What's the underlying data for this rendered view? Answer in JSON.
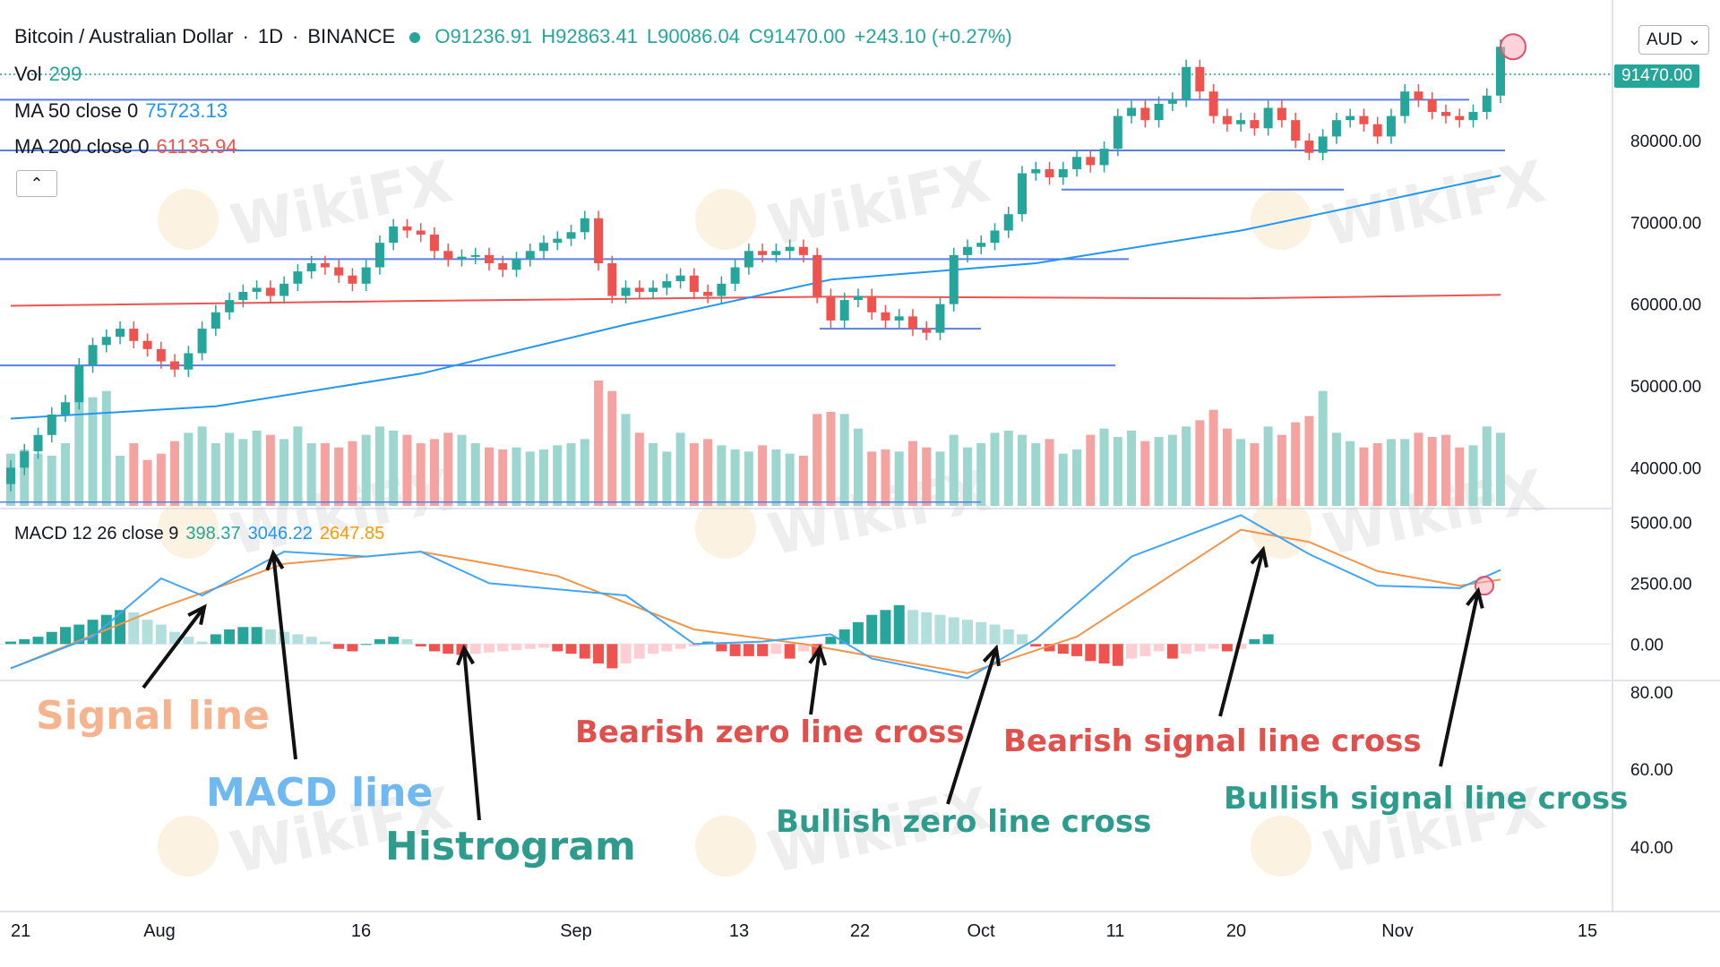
{
  "header": {
    "symbol": "Bitcoin / Australian Dollar",
    "interval": "1D",
    "exchange": "BINANCE",
    "ohlc": {
      "o": "O91236.91",
      "h": "H92863.41",
      "l": "L90086.04",
      "c": "C91470.00",
      "chg": "+243.10 (+0.27%)"
    }
  },
  "legend": {
    "vol_label": "Vol",
    "vol_value": "299",
    "ma50_label": "MA 50 close 0",
    "ma50_value": "75723.13",
    "ma200_label": "MA 200 close 0",
    "ma200_value": "61135.94",
    "macd_label": "MACD 12 26 close 9",
    "macd_hist": "398.37",
    "macd_line": "3046.22",
    "macd_signal": "2647.85"
  },
  "currency_button": "AUD",
  "collapse_icon": "chevron-up-icon",
  "last_price": "91470.00",
  "price_axis": [
    "80000.00",
    "70000.00",
    "60000.00",
    "50000.00",
    "40000.00"
  ],
  "macd_axis": [
    "5000.00",
    "2500.00",
    "0.00"
  ],
  "osc_axis": [
    "80.00",
    "60.00",
    "40.00"
  ],
  "time_axis": [
    "21",
    "Aug",
    "16",
    "Sep",
    "13",
    "22",
    "Oct",
    "11",
    "20",
    "Nov",
    "15"
  ],
  "watermark": "WikiFX",
  "annotations": {
    "signal_line": "Signal line",
    "macd_line": "MACD line",
    "histogram": "Histrogram",
    "bearish_zero": "Bearish zero line cross",
    "bullish_zero": "Bullish zero line cross",
    "bearish_signal": "Bearish signal line cross",
    "bullish_signal": "Bullish signal line cross"
  },
  "colors": {
    "up": "#26a69a",
    "down": "#ef5350",
    "macd": "#42a5f5",
    "signal": "#f2954a",
    "level": "#5b7fe0",
    "ann_signal": "#f6b48e",
    "ann_macd": "#6fb8f0",
    "ann_hist": "#2e9c8c",
    "ann_bear": "#e0504d",
    "ann_bull": "#2e9c8c"
  },
  "chart_data": {
    "type": "candlestick",
    "price_ylim": [
      35000,
      95000
    ],
    "x_start": "2021-07-21",
    "x_end": "2021-11-15",
    "horizontal_levels": [
      85000,
      78800,
      65500,
      52500
    ],
    "candles_close": [
      40000,
      42000,
      44000,
      46500,
      48000,
      52500,
      55000,
      56000,
      57000,
      55500,
      54500,
      53000,
      52000,
      54000,
      57000,
      59000,
      60500,
      61500,
      62000,
      61000,
      62500,
      64000,
      65000,
      64500,
      63500,
      62500,
      64500,
      67500,
      69500,
      69000,
      68500,
      66500,
      65500,
      65800,
      66000,
      65000,
      64200,
      65500,
      66500,
      67500,
      68000,
      68800,
      70500,
      65000,
      61000,
      62000,
      61500,
      62000,
      62800,
      63500,
      61500,
      61000,
      62500,
      64500,
      66500,
      66000,
      66500,
      67000,
      66000,
      61000,
      58000,
      60500,
      61000,
      59000,
      58000,
      58500,
      57000,
      56500,
      60000,
      66000,
      67000,
      67500,
      69000,
      71000,
      76000,
      76500,
      75500,
      76500,
      78000,
      77000,
      79000,
      83000,
      84000,
      82500,
      84500,
      85000,
      89000,
      86000,
      83000,
      82000,
      82500,
      81500,
      84000,
      82500,
      80000,
      78500,
      80500,
      82500,
      83000,
      82000,
      80500,
      83000,
      86000,
      85000,
      83500,
      83000,
      82500,
      83500,
      85500,
      91470
    ],
    "ma50": [
      {
        "x": 0,
        "y": 46000
      },
      {
        "x": 15,
        "y": 47500
      },
      {
        "x": 30,
        "y": 51500
      },
      {
        "x": 45,
        "y": 57500
      },
      {
        "x": 60,
        "y": 63000
      },
      {
        "x": 75,
        "y": 65000
      },
      {
        "x": 90,
        "y": 69000
      },
      {
        "x": 100,
        "y": 72500
      },
      {
        "x": 109,
        "y": 75723
      }
    ],
    "ma200": [
      {
        "x": 0,
        "y": 59800
      },
      {
        "x": 30,
        "y": 60400
      },
      {
        "x": 60,
        "y": 60900
      },
      {
        "x": 90,
        "y": 60700
      },
      {
        "x": 109,
        "y": 61136
      }
    ],
    "volume": [
      25,
      27,
      25,
      24,
      30,
      55,
      52,
      55,
      24,
      30,
      22,
      25,
      31,
      35,
      38,
      30,
      35,
      32,
      36,
      34,
      32,
      38,
      30,
      30,
      28,
      31,
      34,
      38,
      36,
      34,
      30,
      32,
      35,
      34,
      30,
      28,
      27,
      28,
      26,
      27,
      29,
      30,
      32,
      60,
      55,
      44,
      35,
      30,
      26,
      35,
      30,
      32,
      29,
      27,
      26,
      29,
      27,
      25,
      24,
      44,
      45,
      44,
      37,
      26,
      27,
      26,
      31,
      28,
      26,
      34,
      28,
      30,
      35,
      36,
      34,
      30,
      32,
      25,
      27,
      34,
      37,
      33,
      36,
      31,
      33,
      34,
      38,
      41,
      46,
      37,
      32,
      30,
      38,
      34,
      40,
      43,
      55,
      35,
      31,
      28,
      30,
      32,
      32,
      35,
      33,
      34,
      28,
      29,
      38,
      35
    ],
    "macd_ylim": [
      -1500,
      5500
    ],
    "macd": [
      {
        "x": 0,
        "y": -1000
      },
      {
        "x": 6,
        "y": 300
      },
      {
        "x": 11,
        "y": 2700
      },
      {
        "x": 14,
        "y": 2000
      },
      {
        "x": 20,
        "y": 3800
      },
      {
        "x": 26,
        "y": 3600
      },
      {
        "x": 30,
        "y": 3800
      },
      {
        "x": 35,
        "y": 2500
      },
      {
        "x": 45,
        "y": 2000
      },
      {
        "x": 50,
        "y": 0
      },
      {
        "x": 55,
        "y": 100
      },
      {
        "x": 60,
        "y": 400
      },
      {
        "x": 63,
        "y": -600
      },
      {
        "x": 70,
        "y": -1400
      },
      {
        "x": 75,
        "y": 200
      },
      {
        "x": 82,
        "y": 3600
      },
      {
        "x": 90,
        "y": 5300
      },
      {
        "x": 95,
        "y": 3700
      },
      {
        "x": 100,
        "y": 2400
      },
      {
        "x": 106,
        "y": 2300
      },
      {
        "x": 109,
        "y": 3046
      }
    ],
    "signal": [
      {
        "x": 0,
        "y": -1000
      },
      {
        "x": 11,
        "y": 1500
      },
      {
        "x": 20,
        "y": 3300
      },
      {
        "x": 30,
        "y": 3800
      },
      {
        "x": 40,
        "y": 2800
      },
      {
        "x": 50,
        "y": 600
      },
      {
        "x": 58,
        "y": 0
      },
      {
        "x": 70,
        "y": -1200
      },
      {
        "x": 78,
        "y": 300
      },
      {
        "x": 90,
        "y": 4700
      },
      {
        "x": 95,
        "y": 4200
      },
      {
        "x": 100,
        "y": 3000
      },
      {
        "x": 106,
        "y": 2400
      },
      {
        "x": 109,
        "y": 2648
      }
    ],
    "histogram": [
      100,
      200,
      300,
      500,
      700,
      800,
      1000,
      1200,
      1400,
      1300,
      1000,
      800,
      500,
      300,
      100,
      400,
      600,
      700,
      700,
      600,
      500,
      400,
      300,
      100,
      -200,
      -300,
      0,
      200,
      300,
      200,
      -100,
      -300,
      -400,
      -450,
      -400,
      -350,
      -300,
      -250,
      -200,
      -150,
      -300,
      -400,
      -600,
      -800,
      -1000,
      -800,
      -600,
      -400,
      -300,
      -200,
      -100,
      100,
      -300,
      -500,
      -500,
      -500,
      -400,
      -600,
      -300,
      -500,
      300,
      600,
      900,
      1200,
      1400,
      1600,
      1400,
      1300,
      1200,
      1100,
      1000,
      900,
      800,
      600,
      400,
      -100,
      -300,
      -400,
      -500,
      -700,
      -800,
      -900,
      -600,
      -500,
      -300,
      -600,
      -400,
      -300,
      -200,
      -300,
      -200,
      200,
      400
    ]
  }
}
